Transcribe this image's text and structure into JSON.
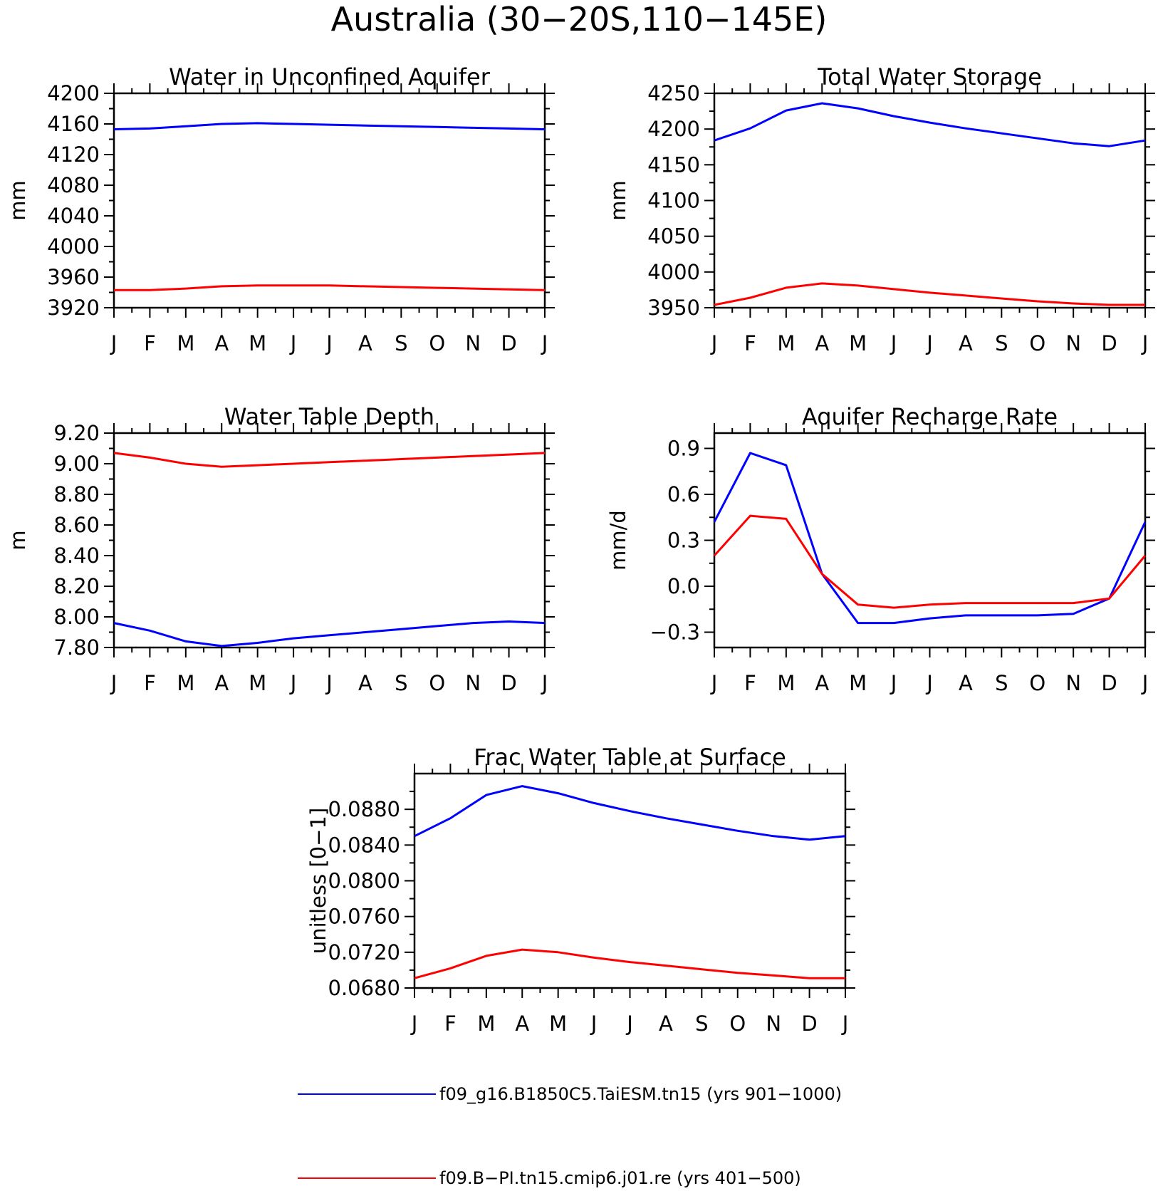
{
  "figure": {
    "title": "Australia (30−20S,110−145E)"
  },
  "legend": [
    {
      "label": "f09_g16.B1850C5.TaiESM.tn15 (yrs 901−1000)",
      "color": "#0000ff"
    },
    {
      "label": "f09.B−PI.tn15.cmip6.j01.re (yrs 401−500)",
      "color": "#ff0000"
    }
  ],
  "chart_data": [
    {
      "type": "line",
      "title": "Water in Unconfined Aquifer",
      "ylabel": "mm",
      "xlabel": "",
      "x": [
        "J",
        "F",
        "M",
        "A",
        "M",
        "J",
        "J",
        "A",
        "S",
        "O",
        "N",
        "D",
        "J"
      ],
      "ylim": [
        3920,
        4200
      ],
      "yticks": [
        "4200",
        "4160",
        "4120",
        "4080",
        "4040",
        "4000",
        "3960",
        "3920"
      ],
      "series": [
        {
          "color": "#0000ff",
          "values": [
            4153,
            4154,
            4157,
            4160,
            4161,
            4160,
            4159,
            4158,
            4157,
            4156,
            4155,
            4154,
            4153
          ]
        },
        {
          "color": "#ff0000",
          "values": [
            3943,
            3943,
            3945,
            3948,
            3949,
            3949,
            3949,
            3948,
            3947,
            3946,
            3945,
            3944,
            3943
          ]
        }
      ]
    },
    {
      "type": "line",
      "title": "Total Water Storage",
      "ylabel": "mm",
      "xlabel": "",
      "x": [
        "J",
        "F",
        "M",
        "A",
        "M",
        "J",
        "J",
        "A",
        "S",
        "O",
        "N",
        "D",
        "J"
      ],
      "ylim": [
        3950,
        4250
      ],
      "yticks": [
        "4250",
        "4200",
        "4150",
        "4100",
        "4050",
        "4000",
        "3950"
      ],
      "series": [
        {
          "color": "#0000ff",
          "values": [
            4184,
            4201,
            4226,
            4236,
            4229,
            4218,
            4209,
            4201,
            4194,
            4187,
            4180,
            4176,
            4184
          ]
        },
        {
          "color": "#ff0000",
          "values": [
            3954,
            3964,
            3978,
            3984,
            3981,
            3976,
            3971,
            3967,
            3963,
            3959,
            3956,
            3954,
            3954
          ]
        }
      ]
    },
    {
      "type": "line",
      "title": "Water Table Depth",
      "ylabel": "m",
      "xlabel": "",
      "x": [
        "J",
        "F",
        "M",
        "A",
        "M",
        "J",
        "J",
        "A",
        "S",
        "O",
        "N",
        "D",
        "J"
      ],
      "ylim": [
        7.8,
        9.2
      ],
      "yticks": [
        "9.20",
        "9.00",
        "8.80",
        "8.60",
        "8.40",
        "8.20",
        "8.00",
        "7.80"
      ],
      "series": [
        {
          "color": "#0000ff",
          "values": [
            7.96,
            7.91,
            7.84,
            7.81,
            7.83,
            7.86,
            7.88,
            7.9,
            7.92,
            7.94,
            7.96,
            7.97,
            7.96
          ]
        },
        {
          "color": "#ff0000",
          "values": [
            9.07,
            9.04,
            9.0,
            8.98,
            8.99,
            9.0,
            9.01,
            9.02,
            9.03,
            9.04,
            9.05,
            9.06,
            9.07
          ]
        }
      ]
    },
    {
      "type": "line",
      "title": "Aquifer Recharge Rate",
      "ylabel": "mm/d",
      "xlabel": "",
      "x": [
        "J",
        "F",
        "M",
        "A",
        "M",
        "J",
        "J",
        "A",
        "S",
        "O",
        "N",
        "D",
        "J"
      ],
      "ylim": [
        -0.4,
        1.0
      ],
      "yticks": [
        "0.9",
        "0.6",
        "0.3",
        "0.0",
        "−0.3"
      ],
      "ytick_values": [
        0.9,
        0.6,
        0.3,
        0.0,
        -0.3
      ],
      "series": [
        {
          "color": "#0000ff",
          "values": [
            0.42,
            0.87,
            0.79,
            0.08,
            -0.24,
            -0.24,
            -0.21,
            -0.19,
            -0.19,
            -0.19,
            -0.18,
            -0.08,
            0.42
          ]
        },
        {
          "color": "#ff0000",
          "values": [
            0.2,
            0.46,
            0.44,
            0.08,
            -0.12,
            -0.14,
            -0.12,
            -0.11,
            -0.11,
            -0.11,
            -0.11,
            -0.08,
            0.2
          ]
        }
      ]
    },
    {
      "type": "line",
      "title": "Frac Water Table at Surface",
      "ylabel": "unitless [0−1]",
      "xlabel": "",
      "x": [
        "J",
        "F",
        "M",
        "A",
        "M",
        "J",
        "J",
        "A",
        "S",
        "O",
        "N",
        "D",
        "J"
      ],
      "ylim": [
        0.068,
        0.092
      ],
      "yticks": [
        "0.0880",
        "0.0840",
        "0.0800",
        "0.0760",
        "0.0720",
        "0.0680"
      ],
      "ytick_values": [
        0.088,
        0.084,
        0.08,
        0.076,
        0.072,
        0.068
      ],
      "series": [
        {
          "color": "#0000ff",
          "values": [
            0.085,
            0.087,
            0.0896,
            0.0906,
            0.0898,
            0.0887,
            0.0878,
            0.087,
            0.0863,
            0.0856,
            0.085,
            0.0846,
            0.085
          ]
        },
        {
          "color": "#ff0000",
          "values": [
            0.0691,
            0.0702,
            0.0716,
            0.0723,
            0.072,
            0.0714,
            0.0709,
            0.0705,
            0.0701,
            0.0697,
            0.0694,
            0.0691,
            0.0691
          ]
        }
      ]
    }
  ]
}
